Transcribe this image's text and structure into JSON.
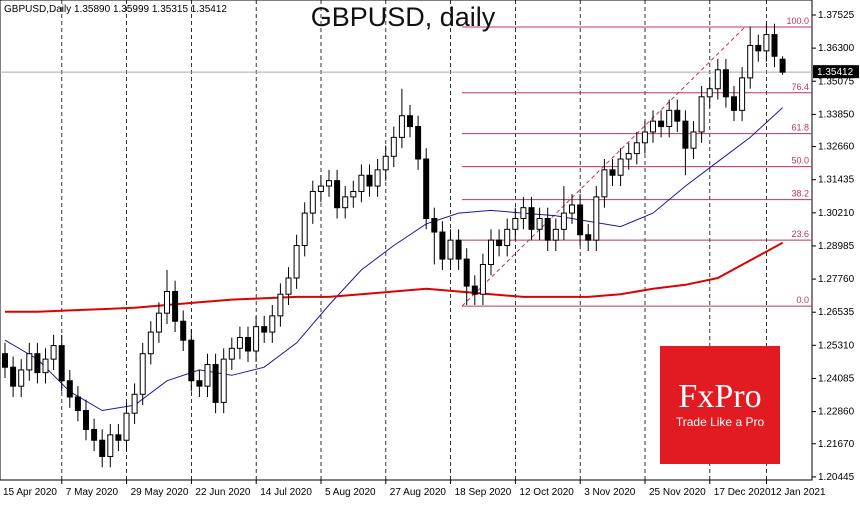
{
  "chart_data": {
    "type": "candlestick",
    "title": "GBPUSD, daily",
    "header": "GBPUSD,Daily  1.35890 1.35999 1.35315 1.35412",
    "categories": [
      "15 Apr 2020",
      null,
      null,
      null,
      null,
      null,
      null,
      null,
      "7 May 2020",
      null,
      null,
      null,
      null,
      null,
      null,
      null,
      "29 May 2020",
      null,
      null,
      null,
      null,
      null,
      null,
      null,
      "22 Jun 2020",
      null,
      null,
      null,
      null,
      null,
      null,
      null,
      "14 Jul 2020",
      null,
      null,
      null,
      null,
      null,
      null,
      null,
      "5 Aug 2020",
      null,
      null,
      null,
      null,
      null,
      null,
      null,
      "27 Aug 2020",
      null,
      null,
      null,
      null,
      null,
      null,
      null,
      "18 Sep 2020",
      null,
      null,
      null,
      null,
      null,
      null,
      null,
      "12 Oct 2020",
      null,
      null,
      null,
      null,
      null,
      null,
      null,
      "3 Nov 2020",
      null,
      null,
      null,
      null,
      null,
      null,
      null,
      "25 Nov 2020",
      null,
      null,
      null,
      null,
      null,
      null,
      null,
      "17 Dec 2020",
      null,
      null,
      null,
      null,
      null,
      null,
      "12 Jan 2021",
      null
    ],
    "open": [
      1.25,
      1.245,
      1.238,
      1.244,
      1.25,
      1.243,
      1.248,
      1.253,
      1.24,
      1.234,
      1.229,
      1.222,
      1.218,
      1.212,
      1.22,
      1.218,
      1.228,
      1.235,
      1.25,
      1.258,
      1.265,
      1.273,
      1.262,
      1.255,
      1.24,
      1.238,
      1.246,
      1.232,
      1.248,
      1.252,
      1.256,
      1.251,
      1.26,
      1.258,
      1.264,
      1.272,
      1.278,
      1.29,
      1.302,
      1.31,
      1.312,
      1.314,
      1.304,
      1.308,
      1.31,
      1.316,
      1.312,
      1.318,
      1.323,
      1.33,
      1.338,
      1.334,
      1.322,
      1.3,
      1.295,
      1.285,
      1.292,
      1.285,
      1.275,
      1.272,
      1.283,
      1.292,
      1.29,
      1.296,
      1.3,
      1.304,
      1.296,
      1.3,
      1.292,
      1.296,
      1.302,
      1.305,
      1.294,
      1.292,
      1.308,
      1.318,
      1.316,
      1.322,
      1.324,
      1.328,
      1.332,
      1.336,
      1.334,
      1.34,
      1.336,
      1.326,
      1.332,
      1.345,
      1.348,
      1.355,
      1.345,
      1.34,
      1.352,
      1.364,
      1.362,
      1.368,
      1.3589
    ],
    "high": [
      1.254,
      1.249,
      1.248,
      1.254,
      1.254,
      1.252,
      1.257,
      1.257,
      1.244,
      1.238,
      1.233,
      1.226,
      1.222,
      1.224,
      1.224,
      1.232,
      1.239,
      1.254,
      1.262,
      1.269,
      1.281,
      1.277,
      1.266,
      1.259,
      1.244,
      1.25,
      1.25,
      1.252,
      1.256,
      1.26,
      1.26,
      1.264,
      1.264,
      1.268,
      1.276,
      1.282,
      1.294,
      1.306,
      1.314,
      1.316,
      1.318,
      1.318,
      1.312,
      1.314,
      1.32,
      1.32,
      1.322,
      1.327,
      1.334,
      1.348,
      1.342,
      1.338,
      1.326,
      1.304,
      1.299,
      1.296,
      1.296,
      1.289,
      1.279,
      1.287,
      1.296,
      1.296,
      1.3,
      1.304,
      1.308,
      1.308,
      1.304,
      1.304,
      1.3,
      1.312,
      1.309,
      1.309,
      1.298,
      1.312,
      1.322,
      1.322,
      1.326,
      1.328,
      1.332,
      1.336,
      1.34,
      1.34,
      1.344,
      1.344,
      1.34,
      1.336,
      1.349,
      1.352,
      1.359,
      1.359,
      1.349,
      1.356,
      1.371,
      1.368,
      1.372,
      1.372,
      1.35999
    ],
    "low": [
      1.241,
      1.234,
      1.234,
      1.24,
      1.239,
      1.239,
      1.244,
      1.236,
      1.23,
      1.225,
      1.218,
      1.214,
      1.208,
      1.208,
      1.214,
      1.214,
      1.224,
      1.231,
      1.246,
      1.254,
      1.261,
      1.258,
      1.251,
      1.236,
      1.234,
      1.234,
      1.228,
      1.228,
      1.244,
      1.248,
      1.247,
      1.247,
      1.254,
      1.254,
      1.26,
      1.268,
      1.274,
      1.286,
      1.298,
      1.306,
      1.308,
      1.3,
      1.3,
      1.304,
      1.306,
      1.308,
      1.308,
      1.314,
      1.319,
      1.326,
      1.33,
      1.318,
      1.296,
      1.283,
      1.281,
      1.281,
      1.281,
      1.268,
      1.268,
      1.268,
      1.279,
      1.286,
      1.286,
      1.292,
      1.296,
      1.292,
      1.292,
      1.288,
      1.288,
      1.292,
      1.298,
      1.29,
      1.288,
      1.288,
      1.304,
      1.312,
      1.312,
      1.318,
      1.32,
      1.324,
      1.328,
      1.33,
      1.33,
      1.332,
      1.316,
      1.322,
      1.328,
      1.341,
      1.344,
      1.341,
      1.336,
      1.336,
      1.348,
      1.358,
      1.358,
      1.356,
      1.35315
    ],
    "close": [
      1.245,
      1.238,
      1.244,
      1.25,
      1.243,
      1.248,
      1.253,
      1.24,
      1.234,
      1.229,
      1.222,
      1.218,
      1.212,
      1.22,
      1.218,
      1.228,
      1.235,
      1.25,
      1.258,
      1.265,
      1.273,
      1.262,
      1.255,
      1.24,
      1.238,
      1.246,
      1.232,
      1.248,
      1.252,
      1.256,
      1.251,
      1.26,
      1.258,
      1.264,
      1.272,
      1.278,
      1.29,
      1.302,
      1.31,
      1.312,
      1.314,
      1.304,
      1.308,
      1.31,
      1.316,
      1.312,
      1.318,
      1.323,
      1.33,
      1.338,
      1.334,
      1.322,
      1.3,
      1.295,
      1.285,
      1.292,
      1.285,
      1.275,
      1.272,
      1.283,
      1.292,
      1.29,
      1.296,
      1.3,
      1.304,
      1.296,
      1.3,
      1.292,
      1.296,
      1.302,
      1.305,
      1.294,
      1.292,
      1.308,
      1.318,
      1.316,
      1.322,
      1.324,
      1.328,
      1.332,
      1.336,
      1.334,
      1.34,
      1.336,
      1.326,
      1.332,
      1.345,
      1.348,
      1.355,
      1.345,
      1.34,
      1.352,
      1.364,
      1.362,
      1.368,
      1.36,
      1.35412
    ],
    "series": [
      {
        "color": "#1a1aa0",
        "x": [
          0,
          4,
          8,
          12,
          16,
          20,
          24,
          28,
          32,
          36,
          40,
          44,
          48,
          52,
          56,
          60,
          64,
          68,
          72,
          76,
          80,
          84,
          88,
          92,
          96
        ],
        "values": [
          1.255,
          1.248,
          1.236,
          1.229,
          1.231,
          1.24,
          1.244,
          1.242,
          1.245,
          1.254,
          1.268,
          1.281,
          1.29,
          1.298,
          1.302,
          1.303,
          1.302,
          1.301,
          1.299,
          1.297,
          1.302,
          1.312,
          1.321,
          1.33,
          1.341
        ]
      },
      {
        "color": "#e00000",
        "x": [
          0,
          4,
          8,
          12,
          16,
          20,
          24,
          28,
          32,
          36,
          40,
          44,
          48,
          52,
          56,
          60,
          64,
          68,
          72,
          76,
          80,
          84,
          88,
          92,
          96
        ],
        "values": [
          1.2655,
          1.2655,
          1.266,
          1.2665,
          1.267,
          1.268,
          1.269,
          1.27,
          1.2705,
          1.271,
          1.271,
          1.272,
          1.273,
          1.274,
          1.273,
          1.272,
          1.271,
          1.271,
          1.271,
          1.272,
          1.274,
          1.2755,
          1.278,
          1.2845,
          1.291
        ]
      }
    ],
    "fibonacci": [
      {
        "label": "100.0",
        "value": 1.3708
      },
      {
        "label": "76.4",
        "value": 1.3465
      },
      {
        "label": "61.8",
        "value": 1.3314
      },
      {
        "label": "50.0",
        "value": 1.3192
      },
      {
        "label": "38.2",
        "value": 1.307
      },
      {
        "label": "23.6",
        "value": 1.292
      },
      {
        "label": "0.0",
        "value": 1.2676
      }
    ],
    "last_price": {
      "value": 1.35412,
      "label": "1.35412"
    },
    "ylim": [
      1.2033,
      1.3808
    ],
    "yticks": [
      1.37525,
      {
        "value": 1.363,
        "label": "1.36300"
      },
      1.35075,
      {
        "value": 1.3385,
        "label": "1.33850"
      },
      {
        "value": 1.3266,
        "label": "1.32660"
      },
      1.31435,
      {
        "value": 1.3021,
        "label": "1.30210"
      },
      1.28985,
      {
        "value": 1.2776,
        "label": "1.27760"
      },
      1.26535,
      {
        "value": 1.2531,
        "label": "1.25310"
      },
      1.24085,
      {
        "value": 1.2286,
        "label": "1.22860"
      },
      {
        "value": 1.2167,
        "label": "1.21670"
      },
      1.20445
    ],
    "logo": {
      "brand": "FxPro",
      "tagline": "Trade Like a Pro"
    }
  }
}
